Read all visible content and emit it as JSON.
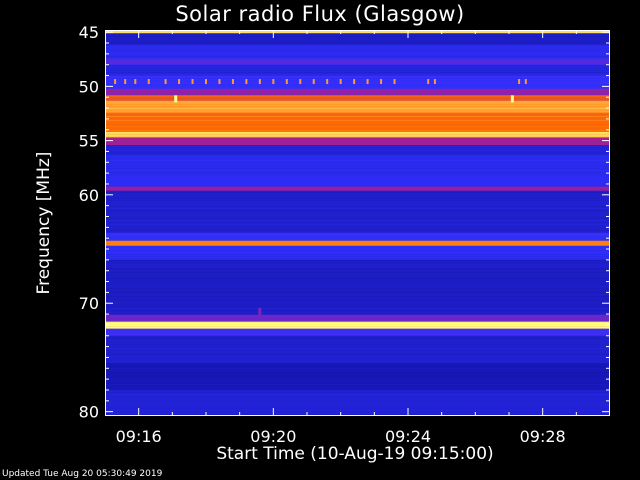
{
  "title": "Solar radio Flux (Glasgow)",
  "footer": "Updated Tue Aug 20 05:30:49 2019",
  "chart_data": {
    "type": "heatmap",
    "title": "Solar radio Flux (Glasgow)",
    "xlabel": "Start Time (10-Aug-19 09:15:00)",
    "ylabel": "Frequency [MHz]",
    "x_ticks": [
      "09:16",
      "09:20",
      "09:24",
      "09:28"
    ],
    "x_tick_minutes": [
      1,
      5,
      9,
      13
    ],
    "x_range_minutes": [
      0,
      15
    ],
    "y_ticks": [
      45,
      50,
      55,
      60,
      70,
      80
    ],
    "y_range": [
      44.8,
      80.4
    ],
    "colors": {
      "background": "#000000",
      "low": "#0a0a8c",
      "mid": "#3030ff",
      "high": "#ff6a00",
      "peak": "#ffff80"
    },
    "bands": [
      {
        "from": 44.8,
        "to": 45.1,
        "level": 0.95
      },
      {
        "from": 45.1,
        "to": 46.2,
        "level": 0.18
      },
      {
        "from": 46.2,
        "to": 47.4,
        "level": 0.3
      },
      {
        "from": 47.4,
        "to": 48.0,
        "level": 0.42
      },
      {
        "from": 48.0,
        "to": 49.0,
        "level": 0.25
      },
      {
        "from": 49.0,
        "to": 50.2,
        "level": 0.35
      },
      {
        "from": 50.2,
        "to": 50.8,
        "level": 0.55
      },
      {
        "from": 50.8,
        "to": 51.3,
        "level": 0.75
      },
      {
        "from": 51.3,
        "to": 52.4,
        "level": 0.88
      },
      {
        "from": 52.4,
        "to": 54.2,
        "level": 0.8
      },
      {
        "from": 54.2,
        "to": 54.7,
        "level": 0.95
      },
      {
        "from": 54.7,
        "to": 55.4,
        "level": 0.6
      },
      {
        "from": 55.4,
        "to": 56.3,
        "level": 0.22
      },
      {
        "from": 56.3,
        "to": 59.2,
        "level": 0.3
      },
      {
        "from": 59.2,
        "to": 59.6,
        "level": 0.55
      },
      {
        "from": 59.6,
        "to": 63.5,
        "level": 0.2
      },
      {
        "from": 63.5,
        "to": 64.2,
        "level": 0.35
      },
      {
        "from": 64.2,
        "to": 64.7,
        "level": 0.82
      },
      {
        "from": 64.7,
        "to": 66.0,
        "level": 0.32
      },
      {
        "from": 66.0,
        "to": 71.0,
        "level": 0.18
      },
      {
        "from": 71.0,
        "to": 71.7,
        "level": 0.45
      },
      {
        "from": 71.7,
        "to": 72.3,
        "level": 1.0
      },
      {
        "from": 72.3,
        "to": 73.0,
        "level": 0.4
      },
      {
        "from": 73.0,
        "to": 75.5,
        "level": 0.2
      },
      {
        "from": 75.5,
        "to": 78.0,
        "level": 0.12
      },
      {
        "from": 78.0,
        "to": 80.4,
        "level": 0.22
      }
    ],
    "markers_freq": 49.6,
    "marker_times_minutes": [
      0.3,
      0.6,
      0.9,
      1.3,
      1.8,
      2.2,
      2.6,
      3.0,
      3.4,
      3.8,
      4.2,
      4.6,
      5.0,
      5.4,
      5.8,
      6.2,
      6.6,
      7.0,
      7.4,
      7.8,
      8.2,
      8.6,
      9.6,
      9.8,
      12.3,
      12.5
    ],
    "bursts": [
      {
        "time_minutes": 2.1,
        "freq": 51.2,
        "level": 1.0
      },
      {
        "time_minutes": 12.1,
        "freq": 51.2,
        "level": 1.0
      },
      {
        "time_minutes": 4.6,
        "freq": 70.8,
        "level": 0.5
      }
    ]
  }
}
